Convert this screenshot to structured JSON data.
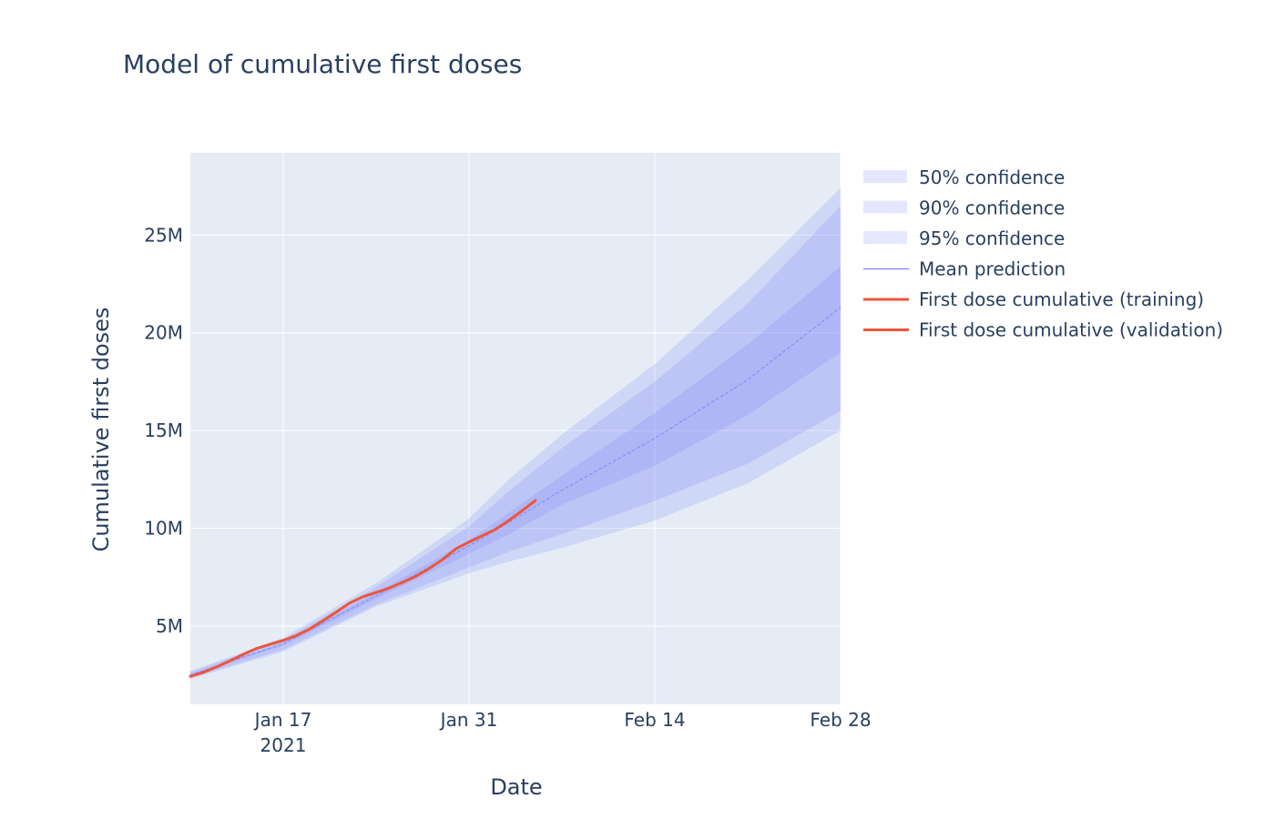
{
  "chart_data": {
    "type": "line",
    "title": "Model of cumulative first doses",
    "xlabel": "Date",
    "ylabel": "Cumulative first doses",
    "x_range": [
      "2021-01-10",
      "2021-02-28"
    ],
    "ylim": [
      1000000,
      29200000
    ],
    "x_ticks": [
      {
        "date": "2021-01-17",
        "label": "Jan 17",
        "sublabel": "2021"
      },
      {
        "date": "2021-01-31",
        "label": "Jan 31",
        "sublabel": ""
      },
      {
        "date": "2021-02-14",
        "label": "Feb 14",
        "sublabel": ""
      },
      {
        "date": "2021-02-28",
        "label": "Feb 28",
        "sublabel": ""
      }
    ],
    "y_ticks": [
      {
        "value": 5000000,
        "label": "5M"
      },
      {
        "value": 10000000,
        "label": "10M"
      },
      {
        "value": 15000000,
        "label": "15M"
      },
      {
        "value": 20000000,
        "label": "20M"
      },
      {
        "value": 25000000,
        "label": "25M"
      }
    ],
    "grid": true,
    "legend_position": "right",
    "colors": {
      "plot_bg": "#e5ecf6",
      "band": "#636efa",
      "mean": "#636efa",
      "training": "#ef553b",
      "validation": "#ef553b"
    },
    "bands": [
      {
        "name": "95% confidence",
        "x": [
          "2021-01-10",
          "2021-01-17",
          "2021-01-24",
          "2021-01-31",
          "2021-02-03",
          "2021-02-07",
          "2021-02-14",
          "2021-02-21",
          "2021-02-28"
        ],
        "lower": [
          2300000,
          3700000,
          6000000,
          7700000,
          8300000,
          9000000,
          10400000,
          12300000,
          15000000
        ],
        "upper": [
          2700000,
          4400000,
          7200000,
          10500000,
          12500000,
          14800000,
          18400000,
          22700000,
          27400000
        ]
      },
      {
        "name": "90% confidence",
        "x": [
          "2021-01-10",
          "2021-01-17",
          "2021-01-24",
          "2021-01-31",
          "2021-02-03",
          "2021-02-07",
          "2021-02-14",
          "2021-02-21",
          "2021-02-28"
        ],
        "lower": [
          2350000,
          3800000,
          6100000,
          8000000,
          8800000,
          9700000,
          11400000,
          13300000,
          16000000
        ],
        "upper": [
          2650000,
          4300000,
          7000000,
          10100000,
          11900000,
          14100000,
          17500000,
          21500000,
          26500000
        ]
      },
      {
        "name": "50% confidence",
        "x": [
          "2021-01-10",
          "2021-01-17",
          "2021-01-24",
          "2021-01-31",
          "2021-02-03",
          "2021-02-07",
          "2021-02-14",
          "2021-02-21",
          "2021-02-28"
        ],
        "lower": [
          2450000,
          4000000,
          6400000,
          8700000,
          9700000,
          11200000,
          13200000,
          15800000,
          19000000
        ],
        "upper": [
          2550000,
          4150000,
          6700000,
          9400000,
          10800000,
          12700000,
          15900000,
          19400000,
          23400000
        ]
      }
    ],
    "series": [
      {
        "name": "Mean prediction",
        "x": [
          "2021-01-10",
          "2021-01-17",
          "2021-01-24",
          "2021-01-31",
          "2021-02-03",
          "2021-02-07",
          "2021-02-14",
          "2021-02-21",
          "2021-02-28"
        ],
        "y": [
          2500000,
          4100000,
          6550000,
          9100000,
          10300000,
          11950000,
          14600000,
          17600000,
          21300000
        ]
      },
      {
        "name": "First dose cumulative (training)",
        "x": [
          "2021-01-10",
          "2021-01-11",
          "2021-01-12",
          "2021-01-13",
          "2021-01-14",
          "2021-01-15",
          "2021-01-16",
          "2021-01-17",
          "2021-01-18",
          "2021-01-19",
          "2021-01-20",
          "2021-01-21",
          "2021-01-22",
          "2021-01-23",
          "2021-01-24",
          "2021-01-25",
          "2021-01-26",
          "2021-01-27",
          "2021-01-28",
          "2021-01-29",
          "2021-01-30",
          "2021-01-31",
          "2021-02-01",
          "2021-02-02"
        ],
        "y": [
          2430000,
          2640000,
          2920000,
          3230000,
          3560000,
          3860000,
          4070000,
          4270000,
          4520000,
          4860000,
          5280000,
          5720000,
          6180000,
          6500000,
          6720000,
          6950000,
          7240000,
          7550000,
          7950000,
          8400000,
          8950000,
          9300000,
          9620000,
          9950000
        ]
      },
      {
        "name": "First dose cumulative (validation)",
        "x": [
          "2021-02-02",
          "2021-02-03",
          "2021-02-04",
          "2021-02-05"
        ],
        "y": [
          9950000,
          10400000,
          10900000,
          11420000
        ]
      }
    ]
  }
}
